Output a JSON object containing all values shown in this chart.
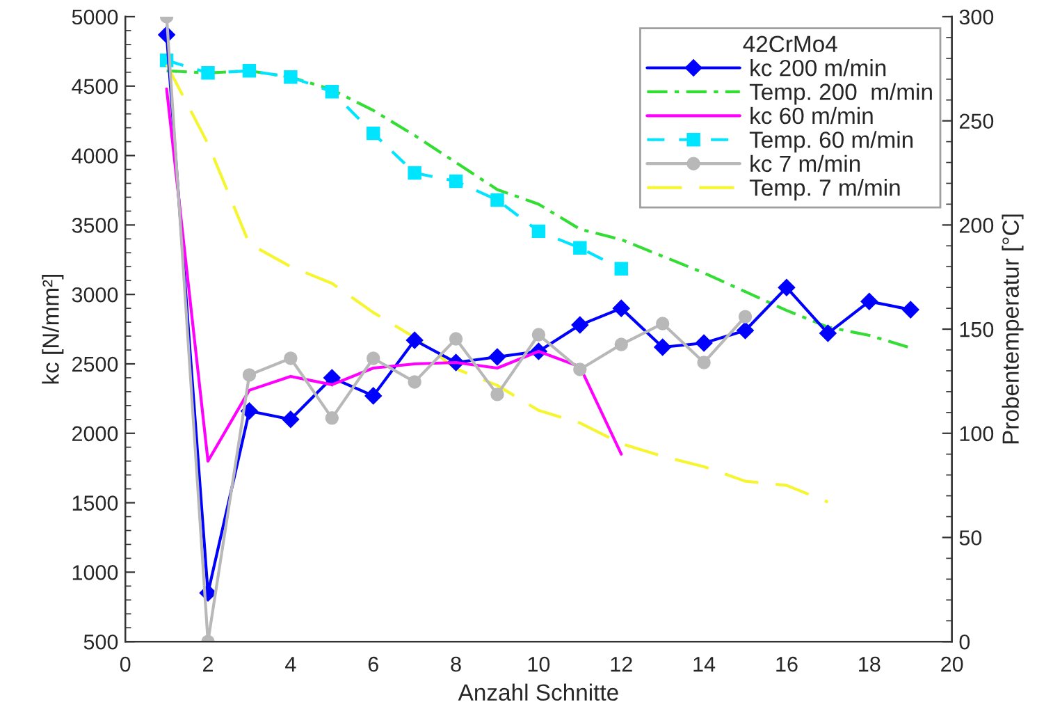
{
  "chart_data": {
    "type": "line",
    "xlabel": "Anzahl Schnitte",
    "ylabel": "kc [N/mm²]",
    "y2label": "Probentemperatur [°C]",
    "legend_title": "42CrMo4",
    "xlim": [
      0,
      20
    ],
    "xticks": [
      0,
      2,
      4,
      6,
      8,
      10,
      12,
      14,
      16,
      18,
      20
    ],
    "ylim": [
      500,
      5000
    ],
    "yticks": [
      500,
      1000,
      1500,
      2000,
      2500,
      3000,
      3500,
      4000,
      4500,
      5000
    ],
    "y2lim": [
      0,
      300
    ],
    "y2ticks": [
      0,
      50,
      100,
      150,
      200,
      250,
      300
    ],
    "grid": false,
    "legend": "top right",
    "series": [
      {
        "name": "kc 200 m/min",
        "color": "#0000ff",
        "marker": "diamond",
        "line_style": "solid",
        "x": [
          1,
          2,
          3,
          4,
          5,
          6,
          7,
          8,
          9,
          10,
          11,
          12,
          13,
          14,
          15,
          16,
          17,
          18,
          19
        ],
        "values": [
          4870,
          850,
          2160,
          2100,
          2400,
          2270,
          2670,
          2510,
          2550,
          2590,
          2780,
          2900,
          2620,
          2650,
          2740,
          3050,
          2720,
          2950,
          2890
        ]
      },
      {
        "name": "Temp. 200  m/min",
        "color": "#33dd33",
        "marker": "none",
        "line_style": "dashdot",
        "axis": "y2",
        "x": [
          1,
          2,
          3,
          4,
          5,
          6,
          7,
          8,
          9,
          10,
          11,
          12,
          13,
          14,
          15,
          16,
          17,
          18,
          19
        ],
        "values": [
          274,
          273,
          274,
          271,
          265,
          255,
          243,
          230,
          217,
          210,
          198,
          193,
          185,
          177,
          168,
          159,
          151,
          147,
          141
        ]
      },
      {
        "name": "kc 60 m/min",
        "color": "#ff00ff",
        "marker": "none",
        "line_style": "solid",
        "x": [
          1,
          2,
          3,
          4,
          5,
          6,
          7,
          8,
          9,
          10,
          11,
          12
        ],
        "values": [
          4480,
          1800,
          2310,
          2410,
          2350,
          2470,
          2500,
          2510,
          2470,
          2590,
          2480,
          1850
        ]
      },
      {
        "name": "Temp. 60 m/min",
        "color": "#00e5ff",
        "marker": "square",
        "line_style": "dashed",
        "axis": "y2",
        "x": [
          1,
          2,
          3,
          4,
          5,
          6,
          7,
          8,
          9,
          10,
          11,
          12
        ],
        "values": [
          279,
          273,
          274,
          271,
          264,
          244,
          225,
          221,
          212,
          197,
          189,
          179
        ]
      },
      {
        "name": "kc 7 m/min",
        "color": "#b8b8b8",
        "marker": "circle",
        "line_style": "solid",
        "x": [
          1,
          2,
          3,
          4,
          5,
          6,
          7,
          8,
          9,
          10,
          11,
          12,
          13,
          14,
          15
        ],
        "values": [
          5000,
          500,
          2420,
          2540,
          2110,
          2540,
          2370,
          2680,
          2280,
          2710,
          2460,
          2640,
          2790,
          2510,
          2840
        ]
      },
      {
        "name": "Temp. 7 m/min",
        "color": "#f5f530",
        "marker": "none",
        "line_style": "longdash",
        "axis": "y2",
        "x": [
          1,
          2,
          3,
          4,
          5,
          6,
          7,
          8,
          9,
          10,
          11,
          12,
          13,
          14,
          15,
          16,
          17
        ],
        "values": [
          277,
          239,
          191,
          180,
          172,
          158,
          146,
          131,
          123,
          111,
          105,
          95,
          89,
          84,
          77,
          75,
          67
        ]
      }
    ]
  }
}
